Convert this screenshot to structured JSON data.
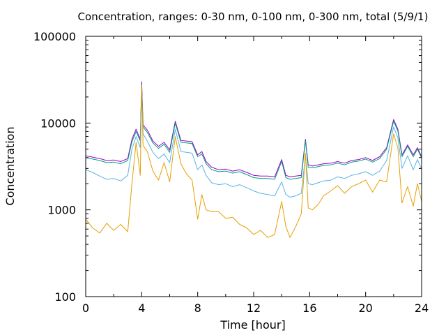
{
  "chart_data": {
    "type": "line",
    "title": "Concentration, ranges: 0-30 nm, 0-100 nm, 0-300 nm, total (5/9/1)",
    "xlabel": "Time [hour]",
    "ylabel": "Concentration",
    "xlim": [
      0,
      24
    ],
    "ylim": [
      100,
      100000
    ],
    "yscale": "log",
    "grid": false,
    "x_ticks": [
      0,
      4,
      8,
      12,
      16,
      20,
      24
    ],
    "x_tick_labels": [
      "0",
      "4",
      "8",
      "12",
      "16",
      "20",
      "24"
    ],
    "y_ticks": [
      100,
      1000,
      10000,
      100000
    ],
    "y_tick_labels": [
      "100",
      "1000",
      "10000",
      "100000"
    ],
    "x": [
      0,
      0.5,
      1,
      1.5,
      2,
      2.5,
      3,
      3.3,
      3.6,
      3.9,
      4.0,
      4.1,
      4.4,
      4.8,
      5.2,
      5.6,
      6.0,
      6.4,
      6.8,
      7.2,
      7.6,
      8.0,
      8.3,
      8.6,
      9.0,
      9.5,
      10,
      10.5,
      11,
      11.5,
      12,
      12.5,
      13,
      13.5,
      14.0,
      14.3,
      14.6,
      15.0,
      15.4,
      15.7,
      15.9,
      16.2,
      16.6,
      17,
      17.5,
      18,
      18.5,
      19,
      19.5,
      20,
      20.5,
      21,
      21.5,
      22.0,
      22.3,
      22.6,
      23,
      23.4,
      23.7,
      24
    ],
    "series": [
      {
        "color": "#9400d3",
        "values": [
          4200,
          4050,
          3900,
          3700,
          3750,
          3600,
          3900,
          6500,
          8500,
          6500,
          30000,
          9500,
          8300,
          6200,
          5400,
          6000,
          4900,
          10500,
          6300,
          6200,
          6100,
          4300,
          4700,
          3600,
          3100,
          2900,
          2950,
          2800,
          2900,
          2700,
          2500,
          2450,
          2450,
          2400,
          3800,
          2500,
          2400,
          2450,
          2500,
          6500,
          3300,
          3200,
          3300,
          3400,
          3450,
          3600,
          3450,
          3700,
          3800,
          4000,
          3700,
          4100,
          5200,
          11000,
          8500,
          4300,
          5600,
          4300,
          5200,
          4100
        ]
      },
      {
        "color": "#009e73",
        "values": [
          4000,
          3850,
          3700,
          3500,
          3550,
          3400,
          3700,
          6100,
          8000,
          6200,
          28000,
          9000,
          7800,
          5900,
          5100,
          5700,
          4600,
          10000,
          6000,
          5900,
          5800,
          4100,
          4400,
          3400,
          2900,
          2750,
          2800,
          2650,
          2750,
          2550,
          2350,
          2300,
          2300,
          2250,
          3600,
          2350,
          2250,
          2300,
          2350,
          6200,
          3100,
          3050,
          3150,
          3250,
          3300,
          3450,
          3300,
          3550,
          3650,
          3850,
          3550,
          3900,
          5000,
          10500,
          8100,
          4100,
          5400,
          4100,
          5000,
          3950
        ]
      },
      {
        "color": "#56b4e9",
        "values": [
          2900,
          2700,
          2450,
          2250,
          2300,
          2150,
          2500,
          5000,
          7000,
          5200,
          25000,
          7500,
          6200,
          4600,
          3900,
          4400,
          3500,
          8500,
          4700,
          4600,
          4500,
          2900,
          3300,
          2500,
          2050,
          1950,
          2000,
          1850,
          1950,
          1800,
          1650,
          1550,
          1500,
          1450,
          2100,
          1500,
          1400,
          1450,
          1550,
          4200,
          2000,
          1950,
          2050,
          2150,
          2200,
          2400,
          2300,
          2500,
          2600,
          2750,
          2500,
          2800,
          3700,
          9000,
          6800,
          3000,
          4200,
          2900,
          3800,
          2950
        ]
      },
      {
        "color": "#e69f00",
        "values": [
          780,
          620,
          540,
          700,
          580,
          680,
          560,
          2000,
          6000,
          2500,
          27000,
          5500,
          4700,
          2800,
          2200,
          3500,
          2100,
          7000,
          3400,
          2600,
          2200,
          780,
          1500,
          1000,
          950,
          950,
          800,
          820,
          680,
          620,
          520,
          580,
          480,
          520,
          1250,
          640,
          480,
          640,
          900,
          4500,
          1050,
          1000,
          1150,
          1450,
          1650,
          1900,
          1550,
          1850,
          2000,
          2200,
          1600,
          2200,
          2100,
          7500,
          5200,
          1200,
          1850,
          1100,
          2000,
          1250
        ]
      }
    ]
  }
}
